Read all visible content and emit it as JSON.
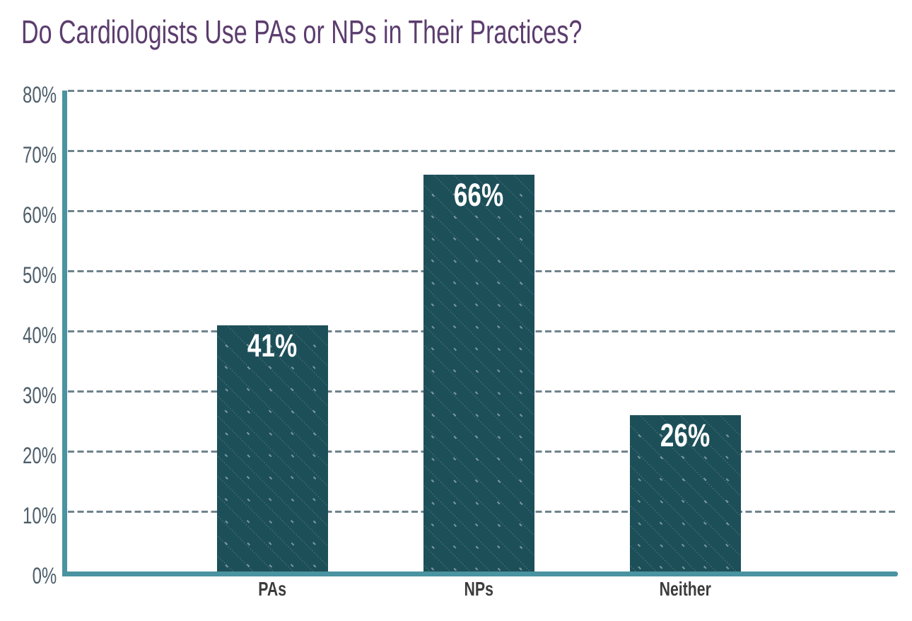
{
  "chart_data": {
    "type": "bar",
    "title": "Do Cardiologists Use PAs or NPs in Their Practices?",
    "categories": [
      "PAs",
      "NPs",
      "Neither"
    ],
    "values": [
      41,
      66,
      26
    ],
    "value_labels": [
      "41%",
      "66%",
      "26%"
    ],
    "xlabel": "",
    "ylabel": "",
    "ylim": [
      0,
      80
    ],
    "ytick_interval": 10,
    "ytick_labels": [
      "0%",
      "10%",
      "20%",
      "30%",
      "40%",
      "50%",
      "60%",
      "70%",
      "80%"
    ],
    "grid": "dashed horizontal",
    "legend": "none"
  },
  "colors": {
    "bar": "#1d4f59",
    "bar_pattern_dot": "rgba(255,255,255,0.22)",
    "bar_pattern_dash": "rgba(255,255,255,0.42)",
    "axis": "#4a93a0",
    "gridline": "#6f838d",
    "title": "#5c3d6e",
    "tick_label": "#4d5e6a",
    "category_label": "#3c3c3c",
    "value_label": "#ffffff"
  }
}
